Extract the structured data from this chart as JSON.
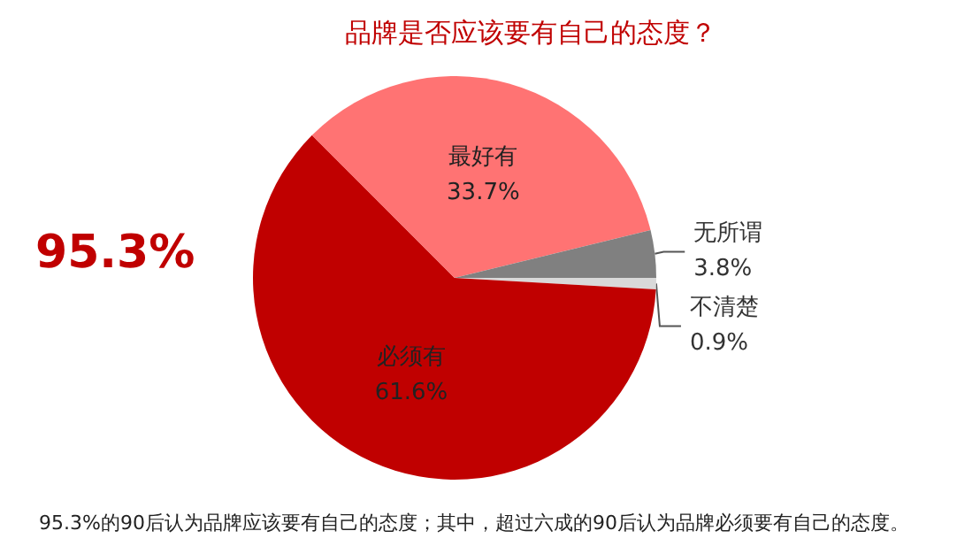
{
  "chart_data": {
    "type": "pie",
    "title": "品牌是否应该要有自己的态度？",
    "categories": [
      "不清楚",
      "必须有",
      "最好有",
      "无所谓"
    ],
    "values": [
      0.9,
      61.6,
      33.7,
      3.8
    ],
    "colors": [
      "#d9d9d9",
      "#c00000",
      "#ff7373",
      "#808080"
    ],
    "value_labels": [
      "0.9%",
      "61.6%",
      "33.7%",
      "3.8%"
    ],
    "legend": false,
    "annotations": [
      "95.3%",
      "95.3%的90后认为品牌应该要有自己的态度；其中，超过六成的90后认为品牌必须要有自己的态度。"
    ]
  }
}
